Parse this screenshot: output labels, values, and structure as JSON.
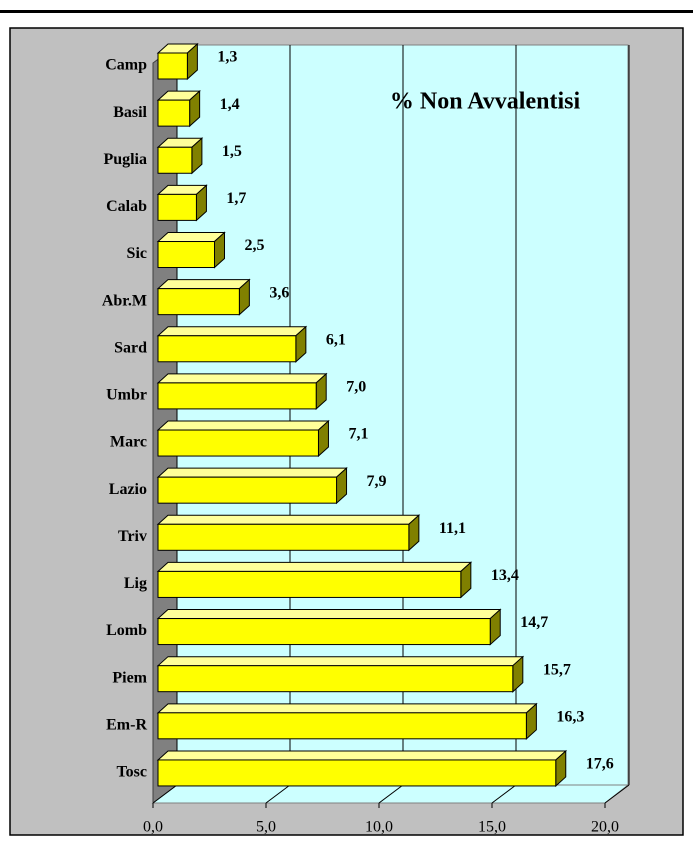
{
  "chart_data": {
    "type": "bar",
    "title": "% Non Avvalentisi",
    "categories": [
      "Camp",
      "Basil",
      "Puglia",
      "Calab",
      "Sic",
      "Abr.M",
      "Sard",
      "Umbr",
      "Marc",
      "Lazio",
      "Triv",
      "Lig",
      "Lomb",
      "Piem",
      "Em-R",
      "Tosc"
    ],
    "values": [
      1.3,
      1.4,
      1.5,
      1.7,
      2.5,
      3.6,
      6.1,
      7.0,
      7.1,
      7.9,
      11.1,
      13.4,
      14.7,
      15.7,
      16.3,
      17.6
    ],
    "value_labels": [
      "1,3",
      "1,4",
      "1,5",
      "1,7",
      "2,5",
      "3,6",
      "6,1",
      "7,0",
      "7,1",
      "7,9",
      "11,1",
      "13,4",
      "14,7",
      "15,7",
      "16,3",
      "17,6"
    ],
    "color": "#ffff00",
    "xlim": [
      0,
      20
    ],
    "xticks": [
      {
        "value": 0,
        "label": "0,0"
      },
      {
        "value": 5,
        "label": "5,0"
      },
      {
        "value": 10,
        "label": "10,0"
      },
      {
        "value": 15,
        "label": "15,0"
      },
      {
        "value": 20,
        "label": "20,0"
      }
    ],
    "grid": true
  }
}
